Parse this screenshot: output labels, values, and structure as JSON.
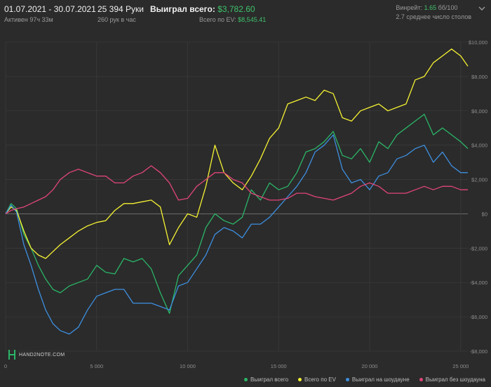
{
  "header": {
    "date_range": "01.07.2021 - 30.07.2021",
    "active_time": "Активен 97ч 33м",
    "hands": "25 394 Руки",
    "hands_per_hour": "260 рук в час",
    "won_total_label": "Выиграл всего:",
    "won_total_value": "$3,782.60",
    "ev_total_label": "Всего по EV:",
    "ev_total_value": "$8,545.41",
    "winrate_label": "Винрейт:",
    "winrate_value": "1.65",
    "winrate_unit": "бб/100",
    "avg_tables": "2.7 среднее число столов"
  },
  "logo": {
    "text": "HAND2NOTE.COM"
  },
  "colors": {
    "background": "#2b2b2b",
    "grid": "#3a3a3a",
    "zero_line": "#6a6a6a",
    "won_total": "#2bb567",
    "ev": "#f5f233",
    "showdown": "#3d8fe0",
    "non_showdown": "#e0457a"
  },
  "legend": [
    {
      "label": "Выиграл всего",
      "color": "#2bb567"
    },
    {
      "label": "Всего по EV",
      "color": "#f5f233"
    },
    {
      "label": "Выиграл на шоудауне",
      "color": "#3d8fe0"
    },
    {
      "label": "Выиграл без шоудауна",
      "color": "#e0457a"
    }
  ],
  "chart_data": {
    "type": "line",
    "xlabel": "",
    "ylabel": "",
    "xlim": [
      0,
      25394
    ],
    "ylim": [
      -8000,
      10000
    ],
    "x_ticks": [
      0,
      5000,
      10000,
      15000,
      20000,
      25000
    ],
    "x_tick_labels": [
      "0",
      "5 000",
      "10 000",
      "15 000",
      "20 000",
      "25 000"
    ],
    "y_ticks": [
      10000,
      8000,
      6000,
      4000,
      2000,
      0,
      -2000,
      -4000,
      -6000,
      -8000
    ],
    "y_tick_labels": [
      "$10,000",
      "$8,000",
      "$6,000",
      "$4,000",
      "$2,000",
      "$0",
      "-$2,000",
      "-$4,000",
      "-$6,000",
      "-$8,000"
    ],
    "grid": true,
    "legend_position": "bottom-right",
    "x": [
      0,
      300,
      600,
      1000,
      1400,
      1800,
      2200,
      2600,
      3000,
      3500,
      4000,
      4500,
      5000,
      5500,
      6000,
      6500,
      7000,
      7500,
      8000,
      8500,
      9000,
      9500,
      10000,
      10500,
      11000,
      11500,
      12000,
      12500,
      13000,
      13500,
      14000,
      14500,
      15000,
      15500,
      16000,
      16500,
      17000,
      17500,
      18000,
      18500,
      19000,
      19500,
      20000,
      20500,
      21000,
      21500,
      22000,
      22500,
      23000,
      23500,
      24000,
      24500,
      25000,
      25394
    ],
    "series": [
      {
        "name": "Выиграл всего",
        "values": [
          0,
          600,
          300,
          -1200,
          -2000,
          -3000,
          -3800,
          -4400,
          -4600,
          -4200,
          -4000,
          -3800,
          -3000,
          -3400,
          -3500,
          -2600,
          -2800,
          -2600,
          -3200,
          -4600,
          -5800,
          -3600,
          -3000,
          -2400,
          -800,
          0,
          -400,
          -600,
          -200,
          1400,
          800,
          1800,
          1400,
          1600,
          2400,
          3600,
          3800,
          4200,
          4800,
          3400,
          3200,
          3800,
          3000,
          4200,
          3800,
          4600,
          5000,
          5400,
          5800,
          4600,
          5000,
          4600,
          4200,
          3800
        ]
      },
      {
        "name": "Всего по EV",
        "values": [
          0,
          400,
          200,
          -1000,
          -2000,
          -2400,
          -2600,
          -2200,
          -1800,
          -1400,
          -1000,
          -700,
          -500,
          -400,
          200,
          600,
          600,
          700,
          800,
          400,
          -1800,
          -800,
          0,
          -200,
          1600,
          4000,
          2400,
          1800,
          1400,
          2200,
          3200,
          4400,
          5000,
          6400,
          6600,
          6800,
          6600,
          7200,
          7000,
          5600,
          5400,
          6000,
          6200,
          6400,
          6000,
          6200,
          6400,
          7800,
          8000,
          8800,
          9200,
          9600,
          9200,
          8600
        ]
      },
      {
        "name": "Выиграл на шоудауне",
        "values": [
          0,
          500,
          100,
          -1800,
          -3000,
          -4400,
          -5600,
          -6400,
          -6800,
          -7000,
          -6600,
          -5600,
          -4800,
          -4600,
          -4400,
          -4400,
          -5200,
          -5200,
          -5200,
          -5400,
          -5600,
          -4200,
          -4000,
          -3200,
          -2400,
          -1200,
          -800,
          -1000,
          -1400,
          -600,
          -600,
          -200,
          400,
          1000,
          1600,
          2400,
          3600,
          4000,
          4600,
          2600,
          1800,
          2000,
          1400,
          2200,
          2400,
          3200,
          3400,
          3800,
          4000,
          3000,
          3600,
          2800,
          2400,
          2400
        ]
      },
      {
        "name": "Выиграл без шоудауна",
        "values": [
          0,
          200,
          300,
          400,
          600,
          800,
          1000,
          1400,
          2000,
          2400,
          2600,
          2400,
          2200,
          2200,
          1800,
          1800,
          2200,
          2400,
          2800,
          2400,
          1800,
          800,
          900,
          1600,
          2000,
          2400,
          2400,
          2000,
          1800,
          1200,
          1000,
          800,
          800,
          900,
          1200,
          1200,
          1000,
          900,
          800,
          1000,
          1200,
          1600,
          1800,
          1600,
          1200,
          1200,
          1200,
          1400,
          1600,
          1400,
          1600,
          1600,
          1400,
          1400
        ]
      }
    ]
  }
}
